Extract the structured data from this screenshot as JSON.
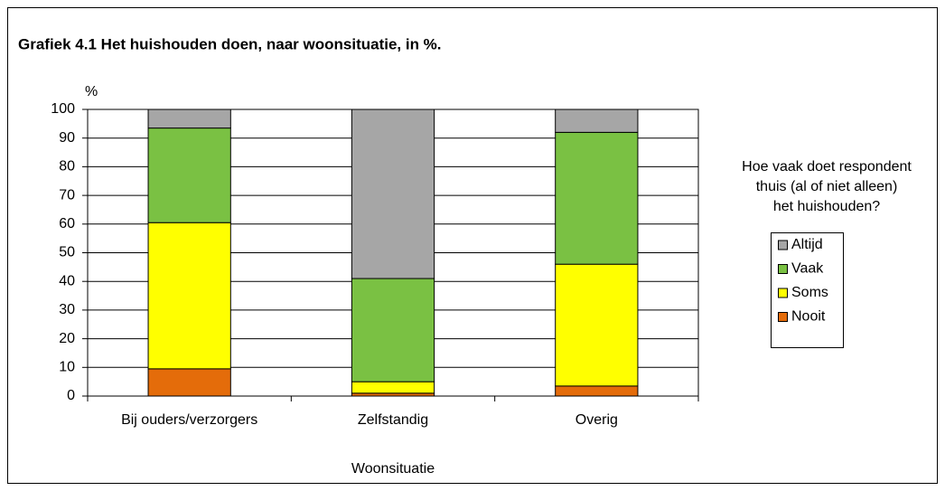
{
  "chart_data": {
    "type": "stacked_bar",
    "title": "Grafiek 4.1  Het huishouden doen, naar woonsituatie,  in %.",
    "y_label": "%",
    "x_label": "Woonsituatie",
    "legend_title": [
      "Hoe vaak doet respondent",
      "thuis (al of niet alleen)",
      "het huishouden?"
    ],
    "categories": [
      "Bij ouders/verzorgers",
      "Zelfstandig",
      "Overig"
    ],
    "series": [
      {
        "name": "Nooit",
        "color": "#e46c0a",
        "values": [
          9.5,
          1,
          3.5
        ]
      },
      {
        "name": "Soms",
        "color": "#ffff00",
        "values": [
          51,
          4,
          42.5
        ]
      },
      {
        "name": "Vaak",
        "color": "#7ac143",
        "values": [
          33,
          36,
          46
        ]
      },
      {
        "name": "Altijd",
        "color": "#a6a6a6",
        "values": [
          6.5,
          59,
          8
        ]
      }
    ],
    "ylim": [
      0,
      100
    ],
    "yticks": [
      0,
      10,
      20,
      30,
      40,
      50,
      60,
      70,
      80,
      90,
      100
    ],
    "grid": true,
    "legend": "right"
  }
}
